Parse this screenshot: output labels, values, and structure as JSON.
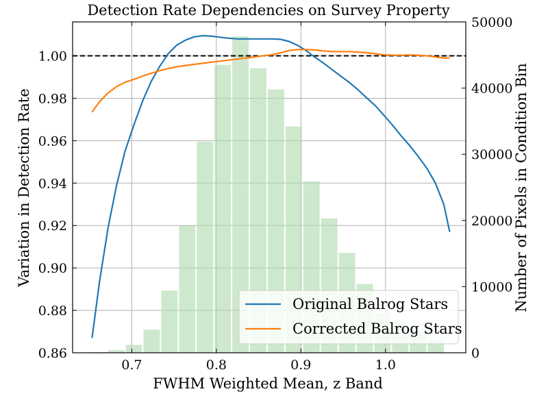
{
  "chart_data": {
    "type": "line",
    "title": "Detection Rate Dependencies on Survey Property",
    "xlabel": "FWHM Weighted Mean, z Band",
    "ylabel": "Variation in Detection Rate",
    "ylabel_right": "Number of Pixels in Condition Bin",
    "xlim": [
      0.63,
      1.095
    ],
    "ylim": [
      0.86,
      1.016
    ],
    "ylim_right": [
      0,
      50000
    ],
    "x_ticks": [
      0.7,
      0.8,
      0.9,
      1.0
    ],
    "x_tick_labels": [
      "0.7",
      "0.8",
      "0.9",
      "1.0"
    ],
    "y_ticks": [
      0.86,
      0.88,
      0.9,
      0.92,
      0.94,
      0.96,
      0.98,
      1.0
    ],
    "y_tick_labels": [
      "0.86",
      "0.88",
      "0.90",
      "0.92",
      "0.94",
      "0.96",
      "0.98",
      "1.00"
    ],
    "y_right_ticks": [
      0,
      10000,
      20000,
      30000,
      40000,
      50000
    ],
    "y_right_tick_labels": [
      "0",
      "10000",
      "20000",
      "30000",
      "40000",
      "50000"
    ],
    "grid": true,
    "reference_line": {
      "y": 1.0,
      "style": "dashed",
      "color": "#000000"
    },
    "legend_position": "lower-right",
    "series": [
      {
        "name": "Original Balrog Stars",
        "color": "#1f77b4",
        "x": [
          0.653,
          0.662,
          0.672,
          0.682,
          0.692,
          0.703,
          0.713,
          0.723,
          0.733,
          0.743,
          0.753,
          0.764,
          0.774,
          0.784,
          0.794,
          0.804,
          0.815,
          0.825,
          0.835,
          0.845,
          0.855,
          0.866,
          0.876,
          0.886,
          0.896,
          0.906,
          0.916,
          0.927,
          0.937,
          0.947,
          0.957,
          0.967,
          0.977,
          0.988,
          0.998,
          1.008,
          1.018,
          1.028,
          1.038,
          1.049,
          1.059,
          1.069,
          1.076
        ],
        "y": [
          0.867,
          0.894,
          0.919,
          0.939,
          0.955,
          0.968,
          0.979,
          0.988,
          0.995,
          1.001,
          1.005,
          1.0075,
          1.009,
          1.0095,
          1.0093,
          1.0088,
          1.0083,
          1.008,
          1.008,
          1.008,
          1.008,
          1.008,
          1.0078,
          1.0068,
          1.005,
          1.0025,
          0.9995,
          0.9965,
          0.9935,
          0.9905,
          0.9875,
          0.9842,
          0.9805,
          0.9765,
          0.972,
          0.9675,
          0.9625,
          0.958,
          0.953,
          0.947,
          0.94,
          0.93,
          0.917
        ]
      },
      {
        "name": "Corrected Balrog Stars",
        "color": "#ff7f0e",
        "x": [
          0.653,
          0.662,
          0.672,
          0.682,
          0.692,
          0.703,
          0.713,
          0.723,
          0.733,
          0.743,
          0.753,
          0.764,
          0.774,
          0.784,
          0.794,
          0.804,
          0.815,
          0.825,
          0.835,
          0.845,
          0.855,
          0.866,
          0.876,
          0.886,
          0.896,
          0.906,
          0.916,
          0.927,
          0.937,
          0.947,
          0.957,
          0.967,
          0.977,
          0.988,
          0.998,
          1.008,
          1.018,
          1.028,
          1.038,
          1.049,
          1.059,
          1.069,
          1.076
        ],
        "y": [
          0.9735,
          0.9785,
          0.9825,
          0.9855,
          0.9875,
          0.989,
          0.9905,
          0.9918,
          0.993,
          0.994,
          0.9948,
          0.9955,
          0.996,
          0.9965,
          0.997,
          0.9975,
          0.998,
          0.9985,
          0.999,
          0.9995,
          1.0,
          1.0005,
          1.0015,
          1.0025,
          1.003,
          1.003,
          1.0028,
          1.0023,
          1.002,
          1.002,
          1.002,
          1.0018,
          1.0015,
          1.001,
          1.0005,
          1.0003,
          1.0003,
          1.0004,
          1.0003,
          1.0,
          0.9995,
          0.999,
          0.999
        ]
      }
    ],
    "histogram": {
      "axis": "right",
      "color": "#b3dbb3",
      "opacity": 0.65,
      "bin_edges": [
        0.65,
        0.671,
        0.692,
        0.713,
        0.734,
        0.755,
        0.776,
        0.797,
        0.818,
        0.839,
        0.86,
        0.881,
        0.902,
        0.923,
        0.944,
        0.965,
        0.986,
        1.007,
        1.028,
        1.049,
        1.07
      ],
      "counts": [
        100,
        400,
        1200,
        3500,
        9400,
        19200,
        31900,
        43500,
        47800,
        43000,
        39800,
        34200,
        25900,
        20300,
        15100,
        10400,
        6000,
        4800,
        3500,
        2000
      ]
    }
  }
}
